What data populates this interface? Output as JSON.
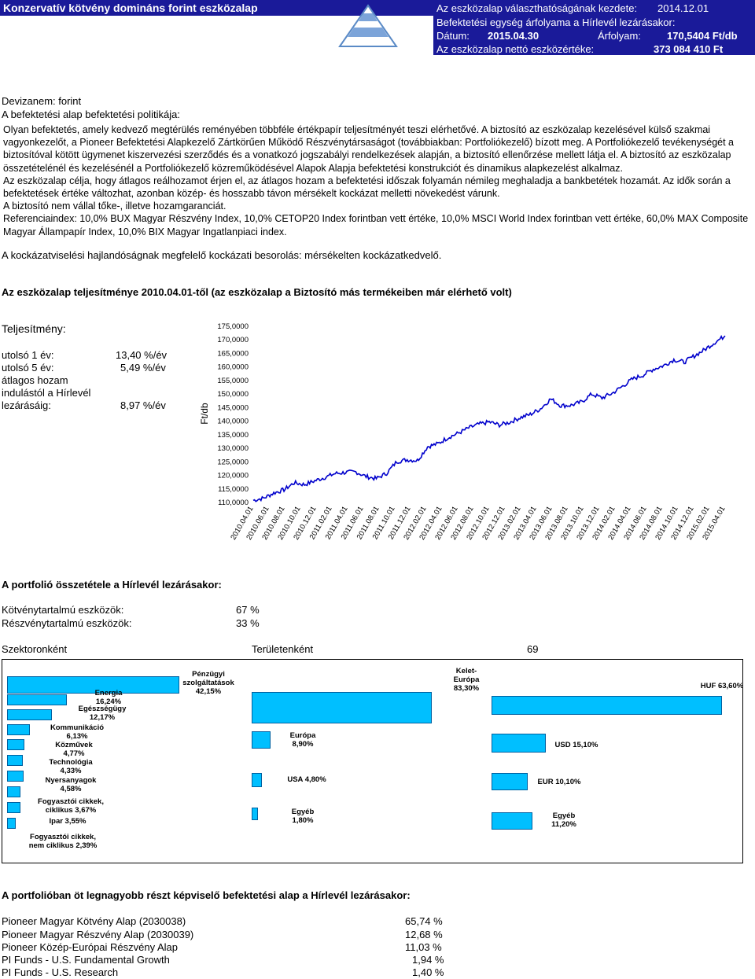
{
  "header": {
    "title": "Konzervatív kötvény domináns forint eszközalap",
    "availability_label": "Az eszközalap választhatóságának kezdete:",
    "availability_date": "2014.12.01",
    "price_heading": "Befektetési egység árfolyama a Hírlevél lezárásakor:",
    "date_label": "Dátum:",
    "date_value": "2015.04.30",
    "price_label": "Árfolyam:",
    "price_value": "170,5404 Ft/db",
    "nav_label": "Az eszközalap nettó eszközértéke:",
    "nav_value": "373 084 410 Ft"
  },
  "intro": {
    "currency": "Devizanem: forint",
    "policy_heading": "A befektetési alap befektetési politikája:"
  },
  "policy": {
    "p1": "Olyan befektetés, amely kedvező megtérülés reményében többféle értékpapír teljesítményét teszi elérhetővé. A biztosító az eszközalap kezelésével külső szakmai vagyonkezelőt, a Pioneer Befektetési Alapkezelő Zártkörűen Működő Részvénytársaságot (továbbiakban: Portfoliókezelő) bízott meg. A Portfoliókezelő tevékenységét a biztosítóval kötött ügymenet kiszervezési szerződés és a vonatkozó jogszabályi rendelkezések alapján, a biztosító ellenőrzése mellett látja el. A biztosító az eszközalap összetételénél és kezelésénél a Portfoliókezelő közreműködésével Alapok Alapja befektetési konstrukciót és dinamikus alapkezelést alkalmaz.",
    "p2": "Az eszközalap célja, hogy átlagos reálhozamot érjen el, az átlagos hozam a befektetési időszak folyamán némileg meghaladja a bankbetétek hozamát. Az idők során a befektetések értéke változhat, azonban közép- és hosszabb távon mérsékelt kockázat melletti növekedést várunk.",
    "p3": "A biztosító nem vállal tőke-, illetve hozamgaranciát.",
    "p4": "Referenciaindex: 10,0% BUX Magyar Részvény Index, 10,0% CETOP20 Index forintban vett értéke, 10,0% MSCI World Index forintban vett értéke, 60,0% MAX Composite Magyar Állampapír Index, 10,0% BIX Magyar Ingatlanpiaci index."
  },
  "risk_text": "A kockázatviselési hajlandóságnak megfelelő kockázati besorolás: mérsékelten kockázatkedvelő.",
  "performance": {
    "heading": "Az eszközalap teljesítménye 2010.04.01-től (az eszközalap a Biztosító más termékeiben már elérhető volt)",
    "label": "Teljesítmény:",
    "rows": [
      {
        "label": "utolsó 1 év:",
        "value": "13,40 %/év"
      },
      {
        "label": "utolsó 5 év:",
        "value": "5,49 %/év"
      }
    ],
    "since_label_1": "átlagos hozam",
    "since_label_2": "indulástól a Hírlevél",
    "since_label_3": "lezárásáig:",
    "since_value": "8,97 %/év"
  },
  "chart_data": {
    "type": "line",
    "ylabel": "Ft/db",
    "ylim": [
      110,
      175
    ],
    "y_ticks": [
      "175,0000",
      "170,0000",
      "165,0000",
      "160,0000",
      "155,0000",
      "150,0000",
      "145,0000",
      "140,0000",
      "135,0000",
      "130,0000",
      "125,0000",
      "120,0000",
      "115,0000",
      "110,0000"
    ],
    "x_ticks": [
      "2010.04.01",
      "2010.06.01",
      "2010.08.01",
      "2010.10.01",
      "2010.12.01",
      "2011.02.01",
      "2011.04.01",
      "2011.06.01",
      "2011.08.01",
      "2011.10.01",
      "2011.12.01",
      "2012.02.01",
      "2012.04.01",
      "2012.06.01",
      "2012.08.01",
      "2012.10.01",
      "2012.12.01",
      "2013.02.01",
      "2013.04.01",
      "2013.06.01",
      "2013.08.01",
      "2013.10.01",
      "2013.12.01",
      "2014.02.01",
      "2014.04.01",
      "2014.06.01",
      "2014.08.01",
      "2014.10.01",
      "2014.12.01",
      "2015.02.01",
      "2015.04.01"
    ],
    "color": "#0000cc",
    "series": [
      {
        "values": [
          110.5,
          111.3,
          113.2,
          114.4,
          117.0,
          116.3,
          117.7,
          119.0,
          120.4,
          120.8,
          121.0,
          119.3,
          118.5,
          120.5,
          124.8,
          125.5,
          125.2,
          130.3,
          131.4,
          133.7,
          135.3,
          137.2,
          138.6,
          139.4,
          138.3,
          139.3,
          141.0,
          142.2,
          144.3,
          147.9,
          145.4,
          145.6,
          146.8,
          149.7,
          148.3,
          150.0,
          152.6,
          155.3,
          156.7,
          158.9,
          160.2,
          162.4,
          161.5,
          163.8,
          166.1,
          168.8,
          171.2
        ]
      }
    ]
  },
  "portfolio": {
    "heading": "A portfolió összetétele a Hírlevél lezárásakor:",
    "rows": [
      {
        "label": "Kötvénytartalmú eszközök:",
        "value": "67 %"
      },
      {
        "label": "Részvénytartalmú eszközök:",
        "value": "33 %"
      }
    ],
    "sector_heading": "Szektoronként",
    "region_heading": "Területenként",
    "stray_number": "69"
  },
  "sector_bars": [
    {
      "label": "Energia\n16,24%",
      "value": 16.24
    },
    {
      "label": "Egészségügy\n12,17%",
      "value": 12.17
    },
    {
      "label": "Kommunikáció\n6,13%",
      "value": 6.13
    },
    {
      "label": "Közművek\n4,77%",
      "value": 4.77
    },
    {
      "label": "Technológia\n4,33%",
      "value": 4.33
    },
    {
      "label": "Nyersanyagok\n4,58%",
      "value": 4.58
    },
    {
      "label": "Fogyasztói cikkek,\nciklikus 3,67%",
      "value": 3.67
    },
    {
      "label": "Ipar 3,55%",
      "value": 3.55
    },
    {
      "label": "Fogyasztói cikkek,\nnem ciklikus 2,39%",
      "value": 2.39
    }
  ],
  "sector_big": {
    "label": "Pénzügyi\nszolgáltatások\n42,15%",
    "value": 42.15
  },
  "region_bars": [
    {
      "label": "Kelet-\nEurópa\n83,30%",
      "value": 83.3
    },
    {
      "label": "Európa\n8,90%",
      "value": 8.9
    },
    {
      "label": "USA 4,80%",
      "value": 4.8
    },
    {
      "label": "Egyéb\n1,80%",
      "value": 1.8
    }
  ],
  "currency_bars": [
    {
      "label": "HUF 63,60%",
      "value": 63.6
    },
    {
      "label": "USD 15,10%",
      "value": 15.1
    },
    {
      "label": "EUR 10,10%",
      "value": 10.1
    },
    {
      "label": "Egyéb\n11,20%",
      "value": 11.2
    }
  ],
  "top_funds": {
    "heading": "A portfolióban öt legnagyobb részt képviselő befektetési alap a Hírlevél lezárásakor:",
    "rows": [
      {
        "name": "Pioneer Magyar Kötvény Alap (2030038)",
        "value": "65,74 %"
      },
      {
        "name": "Pioneer Magyar Részvény Alap (2030039)",
        "value": "12,68 %"
      },
      {
        "name": "Pioneer Közép-Európai Részvény Alap",
        "value": "11,03 %"
      },
      {
        "name": "PI Funds - U.S. Fundamental Growth",
        "value": "1,94 %"
      },
      {
        "name": "PI Funds - U.S. Research",
        "value": "1,40 %"
      }
    ]
  }
}
